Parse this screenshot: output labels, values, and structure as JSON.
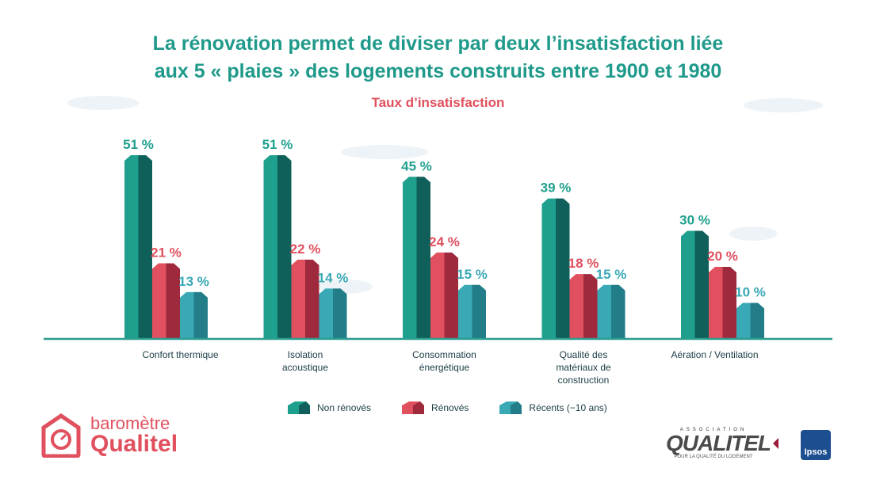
{
  "title_line1": "La rénovation permet de diviser par deux l’insatisfaction liée",
  "title_line2": "aux 5 « plaies » des logements construits entre 1900 et 1980",
  "subtitle": "Taux d’insatisfaction",
  "colors": {
    "non_renoves": "#1fa08e",
    "renoves": "#e0505e",
    "recents": "#3aa9b6",
    "baseline": "#2a9d8f",
    "title": "#1f9a8a"
  },
  "chart_data": {
    "type": "bar",
    "title": "La rénovation permet de diviser par deux l’insatisfaction liée aux 5 « plaies » des logements construits entre 1900 et 1980",
    "subtitle": "Taux d’insatisfaction",
    "categories": [
      [
        "Confort thermique"
      ],
      [
        "Isolation",
        "acoustique"
      ],
      [
        "Consommation",
        "énergétique"
      ],
      [
        "Qualité des",
        "matériaux de",
        "construction"
      ],
      [
        "Aération / Ventilation"
      ]
    ],
    "series": [
      {
        "name": "Non rénovés",
        "values": [
          51,
          51,
          45,
          39,
          30
        ],
        "labels": [
          "51 %",
          "51 %",
          "45 %",
          "39 %",
          "30 %"
        ]
      },
      {
        "name": "Rénovés",
        "values": [
          21,
          22,
          24,
          18,
          20
        ],
        "labels": [
          "21 %",
          "22 %",
          "24 %",
          "18 %",
          "20 %"
        ]
      },
      {
        "name": "Récents (−10 ans)",
        "values": [
          13,
          14,
          15,
          15,
          10
        ],
        "labels": [
          "13 %",
          "14 %",
          "15 %",
          "15 %",
          "10 %"
        ]
      }
    ],
    "ylim": [
      0,
      51
    ],
    "legend_position": "bottom",
    "grid": false
  },
  "legend": [
    "Non rénovés",
    "Rénovés",
    "Récents (−10 ans)"
  ],
  "logo_left": {
    "line1": "baromètre",
    "line2": "Qualitel"
  },
  "logo_right": {
    "top": "ASSOCIATION",
    "main": "QUALITEL",
    "sub": "POUR LA QUALITÉ DU LOGEMENT"
  },
  "logo_ipsos": "Ipsos"
}
